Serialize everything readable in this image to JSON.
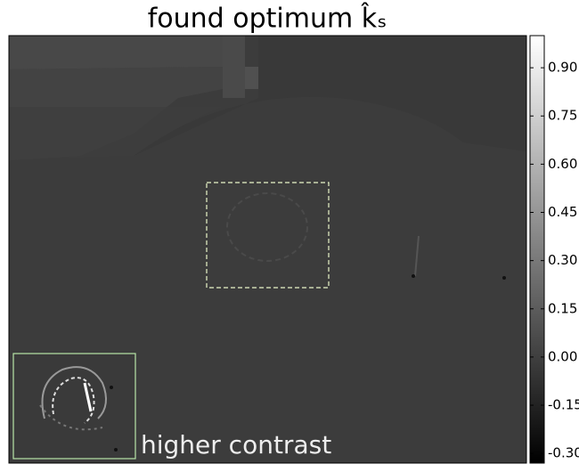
{
  "chart_data": {
    "type": "image",
    "title": "found optimum k̂ₛ",
    "annotation": "higher contrast",
    "colormap": "gray",
    "clim": [
      -0.33,
      1.0
    ],
    "colorbar_ticks": [
      {
        "value": 0.9,
        "label": "0.90"
      },
      {
        "value": 0.75,
        "label": "0.75"
      },
      {
        "value": 0.6,
        "label": "0.60"
      },
      {
        "value": 0.45,
        "label": "0.45"
      },
      {
        "value": 0.3,
        "label": "0.30"
      },
      {
        "value": 0.15,
        "label": "0.15"
      },
      {
        "value": 0.0,
        "label": "0.00"
      },
      {
        "value": -0.15,
        "label": "-0.15"
      },
      {
        "value": -0.3,
        "label": "-0.30"
      }
    ]
  }
}
